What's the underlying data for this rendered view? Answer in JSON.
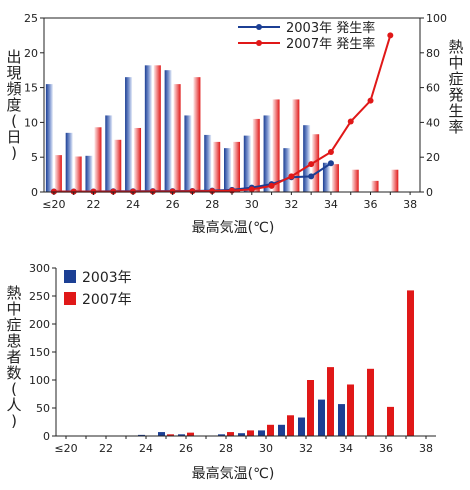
{
  "chart_data": [
    {
      "type": "bar+line",
      "xlabel": "最高気温(℃)",
      "ylabel": "出現頻度(日)",
      "y2label": "熱中症発生率",
      "categories": [
        "≤20",
        "21",
        "22",
        "23",
        "24",
        "25",
        "26",
        "27",
        "28",
        "29",
        "30",
        "31",
        "32",
        "33",
        "34",
        "35",
        "36",
        "37"
      ],
      "xtick_labels": [
        "≤20",
        "22",
        "24",
        "26",
        "28",
        "30",
        "32",
        "34",
        "36",
        "38"
      ],
      "ylim": [
        0,
        25
      ],
      "yticks": [
        0,
        5,
        10,
        15,
        20,
        25
      ],
      "y2lim": [
        0,
        100
      ],
      "y2ticks": [
        0,
        20,
        40,
        60,
        80,
        100
      ],
      "legend_position": "top-right",
      "bar_series": [
        {
          "name": "2003",
          "color": "#1c3f94",
          "values": [
            15.5,
            8.5,
            5.2,
            11,
            16.5,
            18.2,
            17.5,
            11,
            8.2,
            6.3,
            8.1,
            11,
            6.3,
            9.6,
            4.2,
            0,
            0,
            0
          ]
        },
        {
          "name": "2007",
          "color": "#e01818",
          "values": [
            5.3,
            5.1,
            9.3,
            7.5,
            9.2,
            18.2,
            15.5,
            16.5,
            7.2,
            7.2,
            10.5,
            13.3,
            13.3,
            8.3,
            4,
            3.2,
            1.6,
            3.2
          ]
        }
      ],
      "line_series": [
        {
          "name": "2003年 発生率",
          "color": "#1c3f94",
          "values": [
            0.3,
            0.3,
            0.3,
            0.4,
            0.4,
            0.5,
            0.5,
            0.6,
            0.8,
            1.2,
            2.5,
            4.5,
            8.5,
            9,
            16.5,
            null,
            null,
            null
          ]
        },
        {
          "name": "2007年 発生率",
          "color": "#e01818",
          "values": [
            0.2,
            0.2,
            0.2,
            0.2,
            0.2,
            0.3,
            0.3,
            0.4,
            0.5,
            0.8,
            1.5,
            3.5,
            9,
            16,
            23,
            40.5,
            52.5,
            90
          ]
        }
      ]
    },
    {
      "type": "bar",
      "xlabel": "最高気温(℃)",
      "ylabel": "熱中症患者数(人)",
      "categories": [
        "≤20",
        "21",
        "22",
        "23",
        "24",
        "25",
        "26",
        "27",
        "28",
        "29",
        "30",
        "31",
        "32",
        "33",
        "34",
        "35",
        "36",
        "37"
      ],
      "xtick_labels": [
        "≤20",
        "22",
        "24",
        "26",
        "28",
        "30",
        "32",
        "34",
        "36",
        "38"
      ],
      "ylim": [
        0,
        300
      ],
      "yticks": [
        0,
        50,
        100,
        150,
        200,
        250,
        300
      ],
      "legend_position": "top-left",
      "series": [
        {
          "name": "2003年",
          "color": "#1c3f94",
          "values": [
            0,
            0,
            0,
            0,
            2,
            7,
            3,
            0,
            3,
            5,
            10,
            20,
            33,
            65,
            57,
            0,
            0,
            0
          ]
        },
        {
          "name": "2007年",
          "color": "#e01818",
          "values": [
            0,
            0,
            0,
            0,
            0,
            3,
            6,
            0,
            7,
            10,
            20,
            37,
            100,
            123,
            92,
            120,
            52,
            260
          ]
        }
      ]
    }
  ]
}
